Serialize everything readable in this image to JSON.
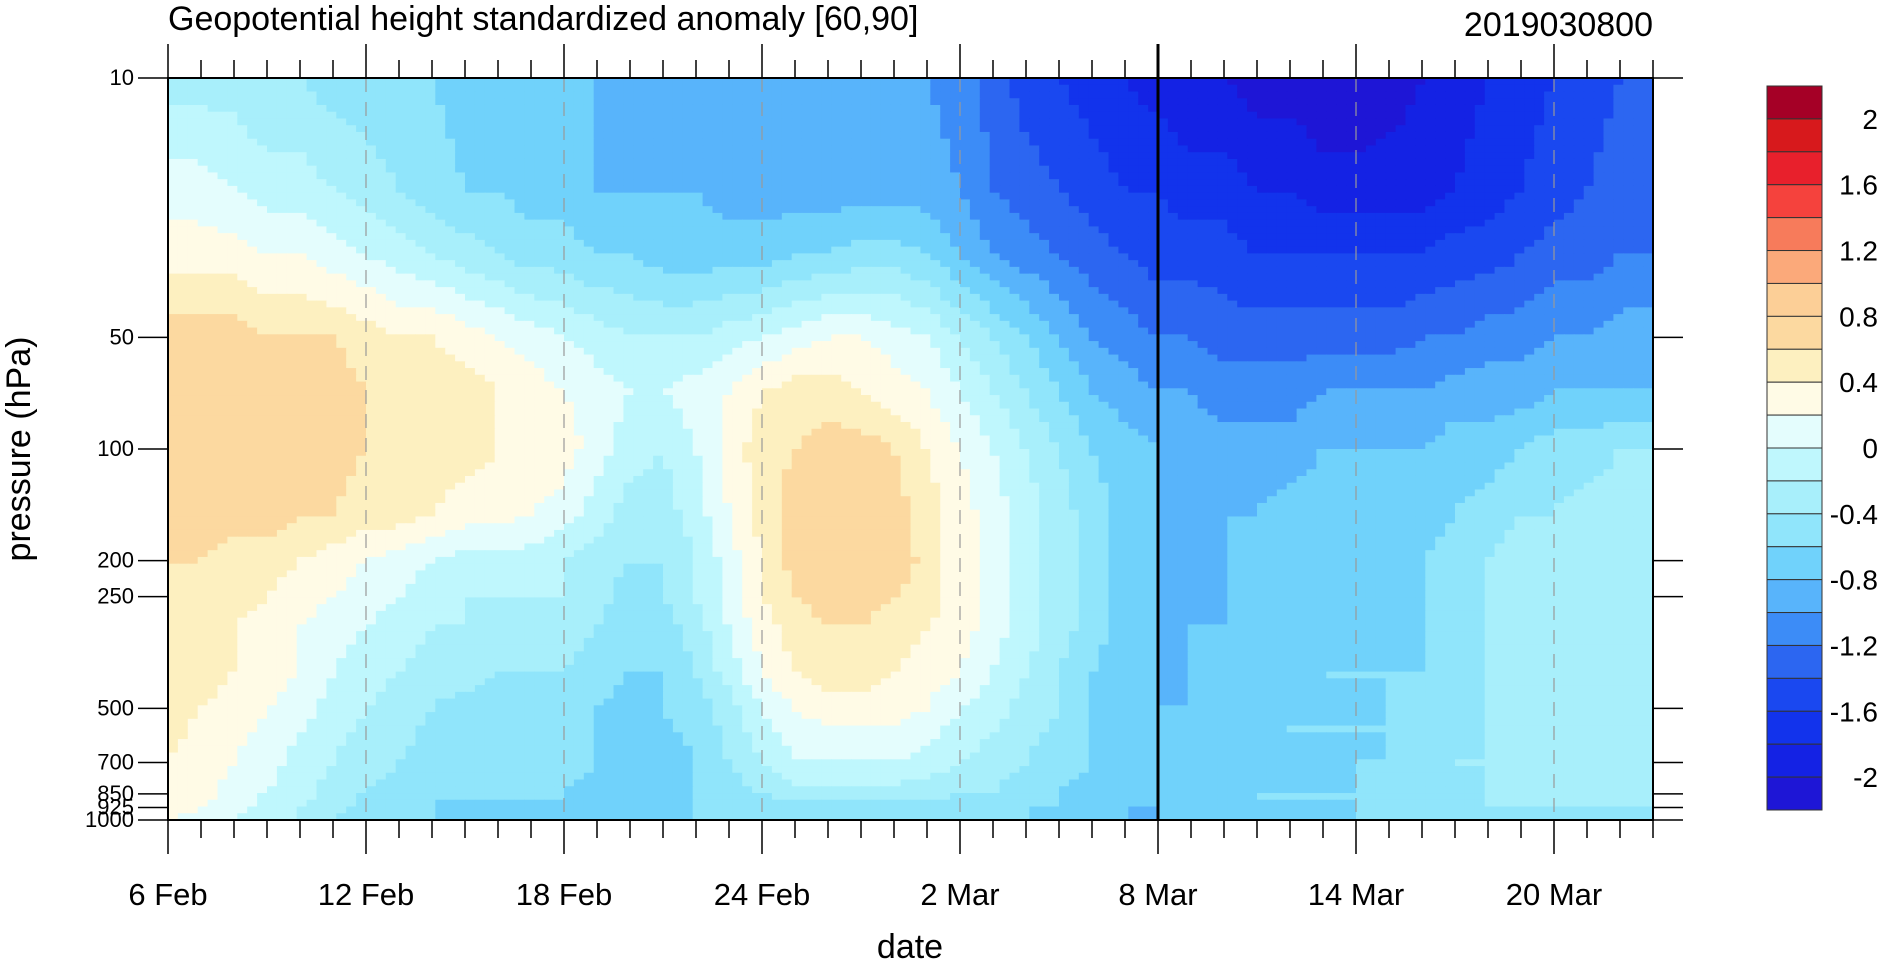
{
  "chart_data": {
    "type": "heatmap",
    "title": "Geopotential height standardized anomaly [60,90]",
    "date_label": "2019030800",
    "xlabel": "date",
    "ylabel": "pressure (hPa)",
    "x_tick_labels": [
      "6 Feb",
      "12 Feb",
      "18 Feb",
      "24 Feb",
      "2 Mar",
      "8 Mar",
      "14 Mar",
      "20 Mar"
    ],
    "x_tick_day_offsets": [
      0,
      6,
      12,
      18,
      24,
      30,
      36,
      42
    ],
    "x_range_days": [
      0,
      45
    ],
    "y_tick_labels": [
      "10",
      "50",
      "100",
      "200",
      "250",
      "500",
      "700",
      "850",
      "925",
      "1000"
    ],
    "y_tick_values": [
      10,
      50,
      100,
      200,
      250,
      500,
      700,
      850,
      925,
      1000
    ],
    "y_scale": "log",
    "y_range": [
      1000,
      10
    ],
    "forecast_start_marker": "8 Mar",
    "colorbar": {
      "labels": [
        "2",
        "1.6",
        "1.2",
        "0.8",
        "0.4",
        "0",
        "-0.4",
        "-0.8",
        "-1.2",
        "-1.6",
        "-2"
      ],
      "levels": [
        2.2,
        2.0,
        1.8,
        1.6,
        1.4,
        1.2,
        1.0,
        0.8,
        0.6,
        0.4,
        0.2,
        0.0,
        -0.2,
        -0.4,
        -0.6,
        -0.8,
        -1.0,
        -1.2,
        -1.4,
        -1.6,
        -1.8,
        -2.0,
        -2.2
      ],
      "colors": [
        "#a50026",
        "#d7191c",
        "#e8202c",
        "#f5423d",
        "#f77b5b",
        "#fba97a",
        "#fccf97",
        "#fcd9a0",
        "#fdf0c0",
        "#fffbe6",
        "#e4fdfd",
        "#bff7fd",
        "#a8effb",
        "#90e5fb",
        "#70d2fb",
        "#58b4fb",
        "#3c8cf7",
        "#2c66f1",
        "#1a48f0",
        "#1233ec",
        "#1422e4",
        "#1e16d6"
      ]
    },
    "series": [
      {
        "name": "",
        "values": []
      }
    ],
    "contour_fields": {
      "description_days": [
        0,
        1,
        2,
        3,
        4,
        5,
        6,
        7,
        8,
        9,
        10,
        11,
        12,
        13,
        14,
        15,
        16,
        17,
        18,
        19,
        20,
        21,
        22,
        23,
        24,
        25,
        26,
        27,
        28,
        29,
        30,
        31,
        32,
        33,
        34,
        35,
        36,
        37,
        38,
        39,
        40,
        41,
        42,
        43,
        44,
        45
      ],
      "levels_hpa": [
        10,
        20,
        30,
        50,
        70,
        100,
        150,
        200,
        250,
        300,
        400,
        500,
        700,
        850,
        925,
        1000
      ]
    }
  }
}
